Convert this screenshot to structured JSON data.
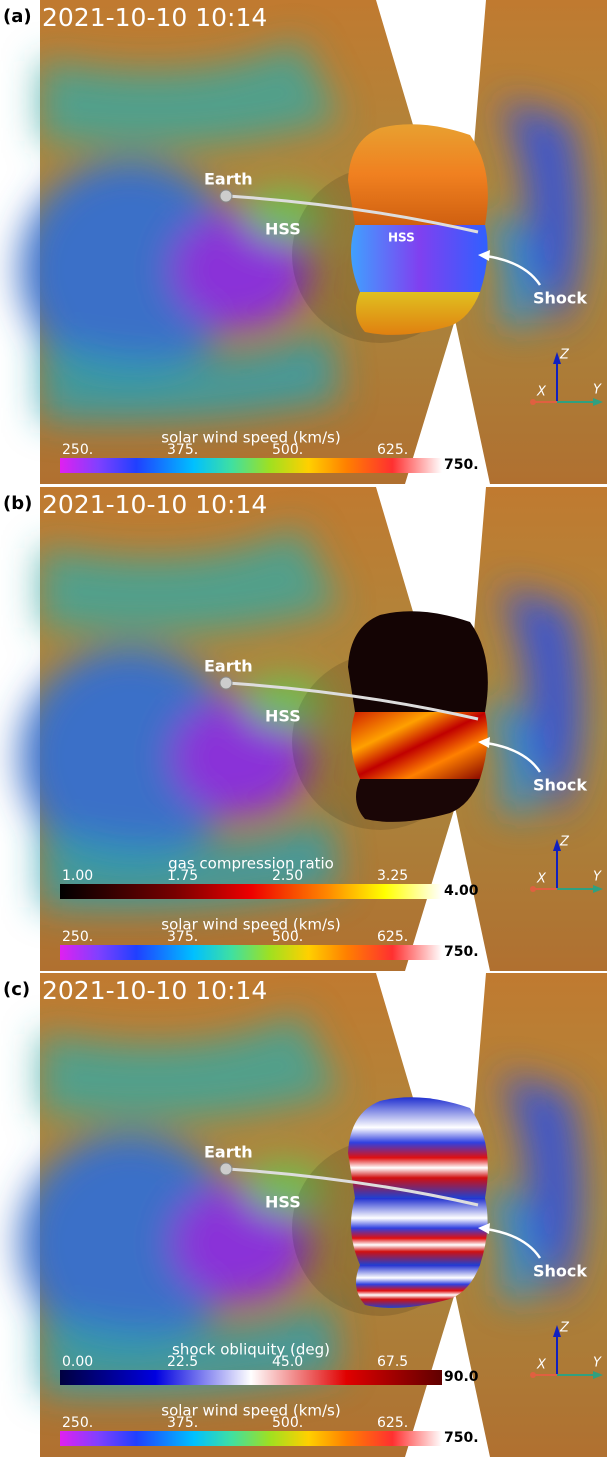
{
  "panels": [
    {
      "label": "(a)",
      "timestamp": "2021-10-10 10:14",
      "annotations": {
        "earth": "Earth",
        "hss": "HSS",
        "hss_inner": "HSS",
        "shock": "Shock"
      },
      "colorbars": [
        {
          "title": "solar wind speed (km/s)",
          "ticks": [
            "250.",
            "375.",
            "500.",
            "625.",
            "750."
          ]
        }
      ],
      "axes": {
        "x": "X",
        "y": "Y",
        "z": "Z"
      }
    },
    {
      "label": "(b)",
      "timestamp": "2021-10-10 10:14",
      "annotations": {
        "earth": "Earth",
        "hss": "HSS",
        "shock": "Shock"
      },
      "colorbars": [
        {
          "title": "gas compression ratio",
          "ticks": [
            "1.00",
            "1.75",
            "2.50",
            "3.25",
            "4.00"
          ]
        },
        {
          "title": "solar wind speed (km/s)",
          "ticks": [
            "250.",
            "375.",
            "500.",
            "625.",
            "750."
          ]
        }
      ],
      "axes": {
        "x": "X",
        "y": "Y",
        "z": "Z"
      }
    },
    {
      "label": "(c)",
      "timestamp": "2021-10-10 10:14",
      "annotations": {
        "earth": "Earth",
        "hss": "HSS",
        "shock": "Shock"
      },
      "colorbars": [
        {
          "title": "shock obliquity (deg)",
          "ticks": [
            "0.00",
            "22.5",
            "45.0",
            "67.5",
            "90.0"
          ]
        },
        {
          "title": "solar wind speed (km/s)",
          "ticks": [
            "250.",
            "375.",
            "500.",
            "625.",
            "750."
          ]
        }
      ],
      "axes": {
        "x": "X",
        "y": "Y",
        "z": "Z"
      }
    }
  ]
}
